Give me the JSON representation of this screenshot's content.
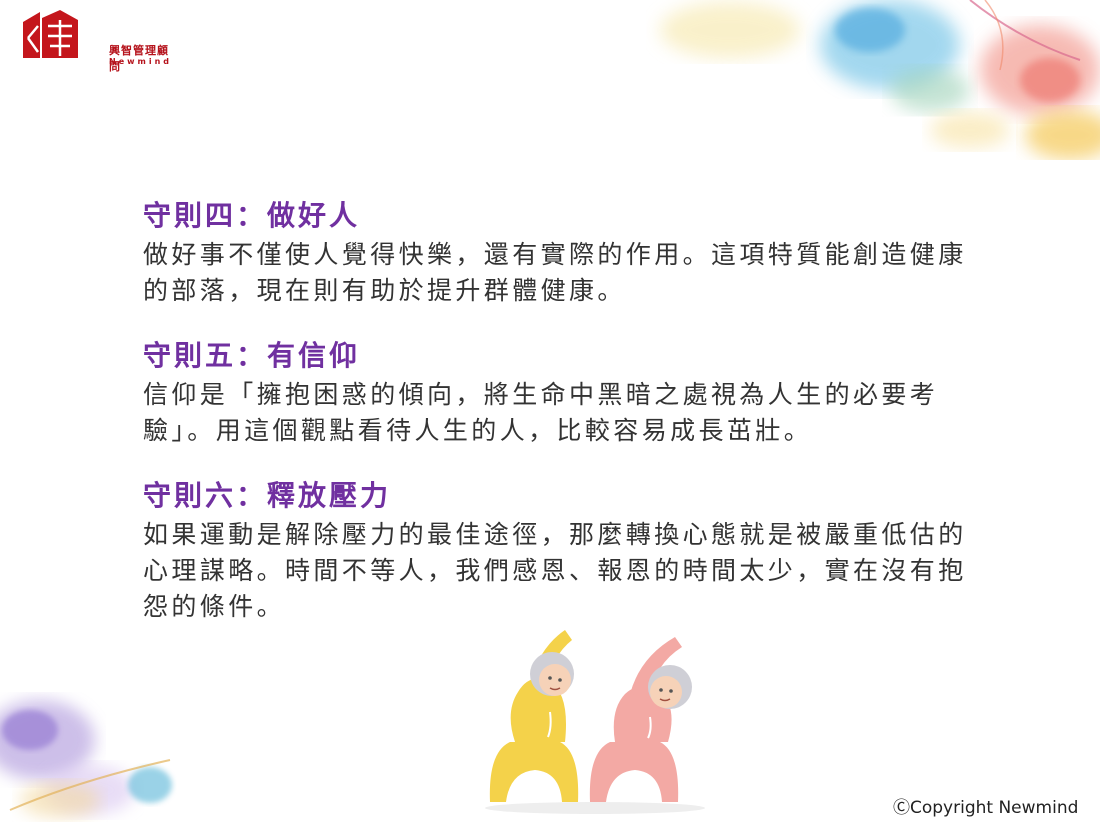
{
  "logo": {
    "name_cn": "興智管理顧問",
    "name_en": "Newmind"
  },
  "sections": [
    {
      "title": "守則四：做好人",
      "body": "做好事不僅使人覺得快樂，還有實際的作用。這項特質能創造健康的部落，現在則有助於提升群體健康。"
    },
    {
      "title": "守則五：有信仰",
      "body": "信仰是「擁抱困惑的傾向，將生命中黑暗之處視為人生的必要考驗」。用這個觀點看待人生的人，比較容易成長茁壯。"
    },
    {
      "title": "守則六：釋放壓力",
      "body": "如果運動是解除壓力的最佳途徑，那麼轉換心態就是被嚴重低估的心理謀略。時間不等人，我們感恩、報恩的時間太少，實在沒有抱怨的條件。"
    }
  ],
  "footer": {
    "copyright": "ⒸCopyright Newmind"
  },
  "colors": {
    "title": "#7030a0",
    "body": "#333333",
    "brand": "#b5121b"
  }
}
